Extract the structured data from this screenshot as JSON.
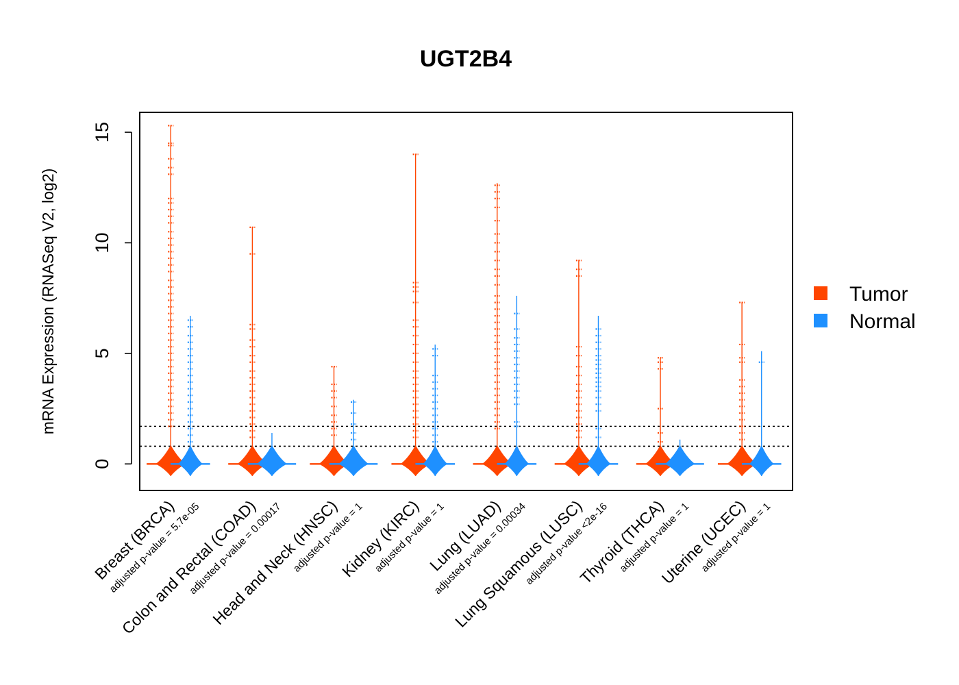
{
  "chart_data": {
    "type": "beanplot",
    "title": "UGT2B4",
    "ylabel": "mRNA Expression (RNASeq V2, log2)",
    "ylim": [
      -1.2,
      15.9
    ],
    "yticks": [
      "0",
      "5",
      "10",
      "15"
    ],
    "thresholds": [
      0.8,
      1.7
    ],
    "series": [
      {
        "name": "Tumor",
        "color": "#ff4500"
      },
      {
        "name": "Normal",
        "color": "#1e90ff"
      }
    ],
    "categories": [
      {
        "label": "Breast (BRCA)",
        "pvalue": "adjusted p-value = 5.7e-05",
        "tumor": {
          "median": 0,
          "max": 15.3,
          "outliers": [
            15.3,
            14.5,
            14.4,
            13.8,
            13.4,
            13.1,
            12.0,
            11.8,
            11.5,
            11.2,
            10.9,
            10.5,
            10.2,
            9.9,
            9.6,
            9.3,
            9.0,
            8.7,
            8.3,
            8.0,
            7.7,
            7.4,
            7.1,
            6.8,
            6.5,
            6.2,
            5.9,
            5.6,
            5.3,
            5.0,
            4.7,
            4.4,
            4.1,
            3.8,
            3.5,
            3.2,
            2.9,
            2.6,
            2.3,
            2.0,
            1.7
          ]
        },
        "normal": {
          "median": 0,
          "max": 6.7,
          "outliers": [
            6.5,
            6.2,
            5.8,
            5.5,
            5.2,
            4.9,
            4.6,
            4.3,
            4.0,
            3.7,
            3.4,
            3.1,
            2.8,
            2.5,
            2.2,
            1.9,
            1.6,
            1.3,
            1.0
          ]
        }
      },
      {
        "label": "Colon and Rectal (COAD)",
        "pvalue": "adjusted p-value = 0.00017",
        "tumor": {
          "median": 0,
          "max": 10.7,
          "outliers": [
            10.7,
            9.5,
            6.3,
            6.1,
            5.6,
            5.3,
            4.9,
            4.6,
            4.2,
            3.9,
            3.6,
            3.3,
            3.0,
            2.7,
            2.4,
            2.1,
            1.8,
            1.5,
            1.2
          ]
        },
        "normal": {
          "median": 0,
          "max": 1.4,
          "outliers": []
        }
      },
      {
        "label": "Head and Neck (HNSC)",
        "pvalue": "adjusted p-value = 1",
        "tumor": {
          "median": 0,
          "max": 4.4,
          "outliers": [
            4.4,
            3.6,
            3.3,
            3.0,
            2.6,
            2.2,
            1.9,
            1.6,
            1.3
          ]
        },
        "normal": {
          "median": 0,
          "max": 2.9,
          "outliers": [
            2.8,
            2.3,
            1.8,
            1.4,
            1.1
          ]
        }
      },
      {
        "label": "Kidney (KIRC)",
        "pvalue": "adjusted p-value = 1",
        "tumor": {
          "median": 0,
          "max": 14.0,
          "outliers": [
            14.0,
            8.2,
            8.0,
            7.8,
            7.3,
            6.5,
            6.2,
            5.8,
            5.4,
            5.0,
            4.6,
            4.2,
            3.9,
            3.6,
            3.3,
            3.0,
            2.7,
            2.4,
            2.1,
            1.8,
            1.5,
            1.2
          ]
        },
        "normal": {
          "median": 0,
          "max": 5.4,
          "outliers": [
            5.2,
            4.9,
            4.0,
            3.7,
            3.4,
            3.1,
            2.8,
            2.5,
            2.2,
            1.9,
            1.6,
            1.3,
            1.0
          ]
        }
      },
      {
        "label": "Lung (LUAD)",
        "pvalue": "adjusted p-value = 0.00034",
        "tumor": {
          "median": 0,
          "max": 12.7,
          "outliers": [
            12.6,
            12.3,
            12.0,
            11.6,
            11.0,
            10.4,
            10.0,
            9.6,
            9.2,
            8.8,
            8.5,
            8.1,
            7.6,
            7.3,
            7.0,
            6.7,
            6.4,
            6.1,
            5.8,
            5.5,
            5.2,
            4.9,
            4.6,
            4.3,
            4.0,
            3.7,
            3.4,
            3.1,
            2.8,
            2.5,
            2.2,
            1.9,
            1.6
          ]
        },
        "normal": {
          "median": 0,
          "max": 7.6,
          "outliers": [
            6.8,
            6.1,
            5.7,
            5.4,
            5.1,
            4.8,
            4.5,
            4.2,
            3.9,
            3.6,
            3.3,
            3.0,
            2.7,
            1.9,
            1.7
          ]
        }
      },
      {
        "label": "Lung Squamous (LUSC)",
        "pvalue": "adjusted p-value <2e-16",
        "tumor": {
          "median": 0,
          "max": 9.2,
          "outliers": [
            9.2,
            8.8,
            8.5,
            5.3,
            4.9,
            4.4,
            4.0,
            3.6,
            3.3,
            3.0,
            2.7,
            2.4,
            2.1,
            1.8,
            1.5,
            1.2
          ]
        },
        "normal": {
          "median": 0,
          "max": 6.7,
          "outliers": [
            6.1,
            5.8,
            5.5,
            5.2,
            4.9,
            4.7,
            4.5,
            4.3,
            4.1,
            3.9,
            3.7,
            3.5,
            3.3,
            3.0,
            2.7,
            2.4,
            1.6,
            1.2
          ]
        }
      },
      {
        "label": "Thyroid (THCA)",
        "pvalue": "adjusted p-value = 1",
        "tumor": {
          "median": 0,
          "max": 4.8,
          "outliers": [
            4.8,
            4.6,
            4.3,
            2.5,
            1.4,
            1.0
          ]
        },
        "normal": {
          "median": 0,
          "max": 1.1,
          "outliers": []
        }
      },
      {
        "label": "Uterine (UCEC)",
        "pvalue": "adjusted p-value = 1",
        "tumor": {
          "median": 0,
          "max": 7.3,
          "outliers": [
            7.3,
            5.4,
            4.8,
            4.6,
            3.8,
            3.5,
            3.2,
            2.9,
            2.6,
            2.3,
            2.0,
            1.7,
            1.4,
            1.1
          ]
        },
        "normal": {
          "median": 0,
          "max": 5.1,
          "outliers": [
            4.6
          ]
        }
      }
    ]
  }
}
